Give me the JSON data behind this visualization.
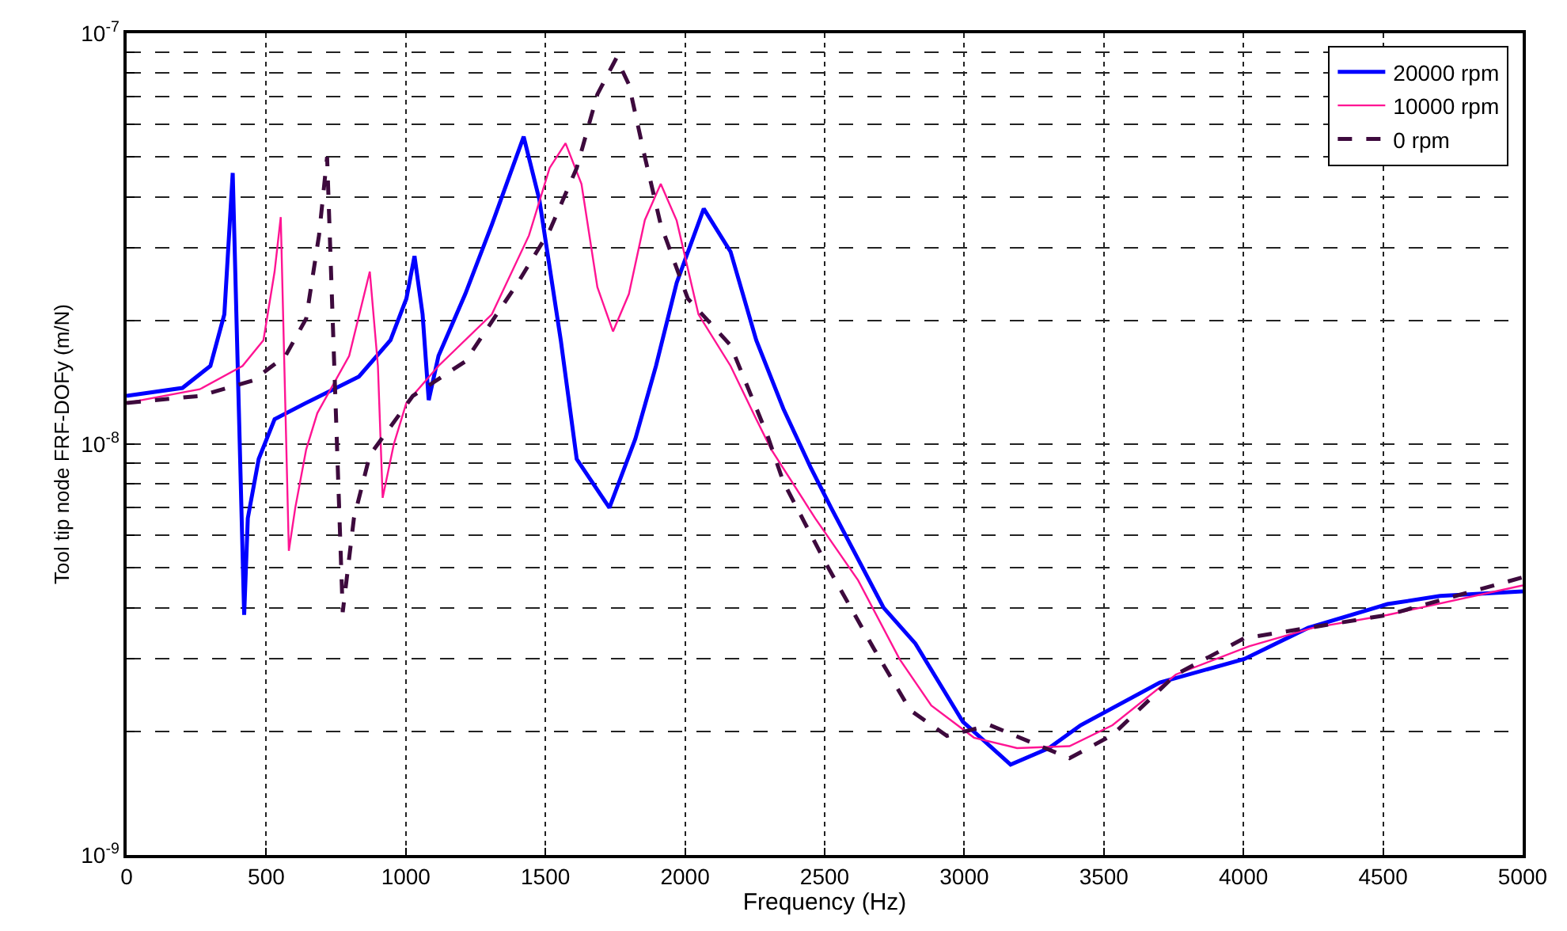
{
  "chart_data": {
    "type": "line",
    "xlabel": "Frequency (Hz)",
    "ylabel": "Tool tip node FRF-DOFy (m/N)",
    "log": "y",
    "grid": true,
    "legend": "top right",
    "xlim": [
      0,
      5000
    ],
    "xticks": [
      0,
      500,
      1000,
      1500,
      2000,
      2500,
      3000,
      3500,
      4000,
      4500,
      5000
    ],
    "ylim": [
      1e-09,
      1e-07
    ],
    "yticks": [
      {
        "value": 1e-09,
        "label": "10$^{-9}$"
      },
      {
        "value": 2e-09,
        "label": null
      },
      {
        "value": 3e-09,
        "label": null
      },
      {
        "value": 4e-09,
        "label": null
      },
      {
        "value": 5e-09,
        "label": null
      },
      {
        "value": 6e-09,
        "label": null
      },
      {
        "value": 7e-09,
        "label": null
      },
      {
        "value": 8e-09,
        "label": null
      },
      {
        "value": 9e-09,
        "label": null
      },
      {
        "value": 1e-08,
        "label": "10$^{-8}$"
      },
      {
        "value": 2e-08,
        "label": null
      },
      {
        "value": 3e-08,
        "label": null
      },
      {
        "value": 4e-08,
        "label": null
      },
      {
        "value": 5e-08,
        "label": null
      },
      {
        "value": 6e-08,
        "label": null
      },
      {
        "value": 7e-08,
        "label": null
      },
      {
        "value": 8e-08,
        "label": null
      },
      {
        "value": 9e-08,
        "label": null
      },
      {
        "value": 1e-07,
        "label": "10$^{-7}$"
      }
    ],
    "series": [
      {
        "name": "20000 rpm",
        "color": "#0000ff",
        "line_style": "solid",
        "x": [
          0,
          200,
          300,
          350,
          380,
          421,
          434,
          473,
          530,
          643,
          832,
          945,
          1002,
          1031,
          1060,
          1082,
          1117,
          1213,
          1308,
          1422,
          1478,
          1555,
          1612,
          1729,
          1822,
          1896,
          1970,
          2067,
          2163,
          2255,
          2352,
          2449,
          2523,
          2711,
          2825,
          2995,
          3166,
          3303,
          3417,
          3701,
          4003,
          4231,
          4516,
          4704,
          5000
        ],
        "values": [
          1.31e-08,
          1.37e-08,
          1.55e-08,
          2.07e-08,
          4.57e-08,
          3.84e-09,
          6.6e-09,
          9.2e-09,
          1.15e-08,
          1.26e-08,
          1.46e-08,
          1.79e-08,
          2.26e-08,
          2.87e-08,
          2.07e-08,
          1.28e-08,
          1.64e-08,
          2.32e-08,
          3.42e-08,
          5.6e-08,
          3.94e-08,
          1.79e-08,
          9.2e-09,
          7e-09,
          1.03e-08,
          1.55e-08,
          2.47e-08,
          3.74e-08,
          2.94e-08,
          1.79e-08,
          1.22e-08,
          8.8e-09,
          7e-09,
          4e-09,
          3.27e-09,
          2.11e-09,
          1.66e-09,
          1.82e-09,
          2.07e-09,
          2.63e-09,
          3e-09,
          3.57e-09,
          4.08e-09,
          4.27e-09,
          4.38e-09
        ]
      },
      {
        "name": "10000 rpm",
        "color": "#ff1493",
        "line_style": "solid",
        "x": [
          0,
          262,
          415,
          490,
          530,
          552,
          581,
          604,
          643,
          683,
          797,
          871,
          900,
          917,
          957,
          1002,
          1117,
          1308,
          1441,
          1515,
          1572,
          1629,
          1686,
          1742,
          1799,
          1856,
          1913,
          1970,
          2048,
          2163,
          2255,
          2309,
          2466,
          2620,
          2768,
          2882,
          3035,
          3189,
          3377,
          3531,
          3758,
          4020,
          4248,
          4516,
          5000
        ],
        "values": [
          1.26e-08,
          1.36e-08,
          1.55e-08,
          1.79e-08,
          2.63e-08,
          3.57e-08,
          5.5e-09,
          7e-09,
          9.7e-09,
          1.19e-08,
          1.64e-08,
          2.63e-08,
          1.55e-08,
          7.4e-09,
          1e-08,
          1.26e-08,
          1.55e-08,
          2.07e-08,
          3.22e-08,
          4.7e-08,
          5.4e-08,
          4.3e-08,
          2.41e-08,
          1.88e-08,
          2.32e-08,
          3.51e-08,
          4.3e-08,
          3.5e-08,
          2.07e-08,
          1.55e-08,
          1.15e-08,
          9.7e-09,
          6.6e-09,
          4.66e-09,
          3e-09,
          2.31e-09,
          1.93e-09,
          1.82e-09,
          1.84e-09,
          2.07e-09,
          2.75e-09,
          3.22e-09,
          3.57e-09,
          3.84e-09,
          4.53e-09
        ]
      },
      {
        "name": "0 rpm",
        "color": "#3d0a3d",
        "line_style": "dashed",
        "x": [
          0,
          262,
          454,
          569,
          643,
          689,
          718,
          774,
          814,
          871,
          1025,
          1213,
          1401,
          1515,
          1612,
          1686,
          1754,
          1799,
          1856,
          1913,
          2010,
          2163,
          2295,
          2352,
          2506,
          2676,
          2807,
          2938,
          3092,
          3377,
          3531,
          3758,
          4003,
          4231,
          4516,
          5000
        ],
        "values": [
          1.26e-08,
          1.31e-08,
          1.43e-08,
          1.64e-08,
          2.02e-08,
          3.22e-08,
          5e-08,
          3.9e-09,
          6.6e-09,
          9.4e-09,
          1.31e-08,
          1.59e-08,
          2.47e-08,
          3.31e-08,
          4.7e-08,
          7.1e-08,
          8.7e-08,
          7.5e-08,
          5e-08,
          3.42e-08,
          2.26e-08,
          1.74e-08,
          1.05e-08,
          8.1e-09,
          5.1e-09,
          3.18e-09,
          2.25e-09,
          1.95e-09,
          2.07e-09,
          1.72e-09,
          1.96e-09,
          2.75e-09,
          3.37e-09,
          3.57e-09,
          3.84e-09,
          4.74e-09
        ]
      }
    ]
  }
}
